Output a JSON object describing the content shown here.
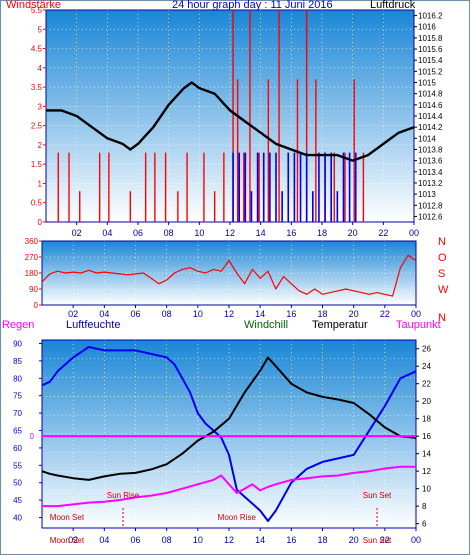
{
  "colors": {
    "plot_top": "#1a86d6",
    "plot_bottom": "#ffffff",
    "wind": "#ff0000",
    "gust": "#0000ee",
    "pressure": "#000000",
    "dir": "#ff0000",
    "temp": "#000000",
    "hum": "#0000ee",
    "dew": "#ff00ff",
    "rain": "#ff00ff",
    "grid": "#ffffff",
    "axis_blue": "#0000aa",
    "sun": "#cc0000",
    "moon": "#cc0000"
  },
  "header": {
    "title": "24 hour graph day : 11 Juni 2016",
    "left_label": "Windstärke",
    "right_label": "Luftdruck"
  },
  "panel3_labels": {
    "regen": "Regen",
    "luftfeuchte": "Luftfeuchte",
    "windchill": "Windchill",
    "temperatur": "Temperatur",
    "taupunkt": "Taupunkt"
  },
  "chart_data": [
    {
      "type": "line",
      "title": "24 hour graph day : 11 Juni 2016",
      "x_ticks": [
        "02",
        "04",
        "06",
        "08",
        "10",
        "12",
        "14",
        "16",
        "18",
        "20",
        "22",
        "00"
      ],
      "x_range_hours": [
        0,
        24
      ],
      "y_left": {
        "label": "Windstärke",
        "range": [
          0,
          5.5
        ],
        "ticks": [
          "0",
          "0.5",
          "1",
          "1.5",
          "2",
          "2.5",
          "3",
          "3.5",
          "4",
          "4.5",
          "5",
          "5.5"
        ]
      },
      "y_right": {
        "label": "Luftdruck",
        "range": [
          1012.5,
          1016.3
        ],
        "ticks": [
          "1012.6",
          "1012.8",
          "1013",
          "1013.2",
          "1013.4",
          "1013.6",
          "1013.8",
          "1014",
          "1014.2",
          "1014.4",
          "1014.6",
          "1014.8",
          "1015",
          "1015.2",
          "1015.4",
          "1015.6",
          "1015.8",
          "1016",
          "1016.2"
        ]
      },
      "series": [
        {
          "axis": "right",
          "x": [
            0,
            1,
            2,
            3,
            4,
            5,
            5.5,
            6,
            7,
            8,
            9,
            9.5,
            10,
            11,
            12,
            13,
            14,
            15,
            16,
            17,
            18,
            19,
            20,
            21,
            22,
            23,
            24
          ],
          "y": [
            1014.5,
            1014.5,
            1014.4,
            1014.2,
            1014.0,
            1013.9,
            1013.8,
            1013.9,
            1014.2,
            1014.6,
            1014.9,
            1015.0,
            1014.9,
            1014.8,
            1014.5,
            1014.3,
            1014.1,
            1013.9,
            1013.8,
            1013.7,
            1013.7,
            1013.7,
            1013.6,
            1013.7,
            1013.9,
            1014.1,
            1014.2
          ]
        },
        {
          "axis": "left",
          "kind": "wind-bars",
          "x": [
            0.8,
            1.5,
            2.2,
            3.5,
            4.1,
            5.5,
            6.5,
            7.1,
            7.8,
            8.6,
            9.2,
            10.3,
            11.0,
            11.6,
            12.2,
            12.5,
            12.9,
            13.3,
            13.9,
            14.5,
            15.2,
            15.8,
            16.4,
            17.0,
            17.6,
            18.2,
            18.8,
            19.5,
            20.1,
            20.7
          ],
          "y": [
            1.8,
            1.8,
            0.8,
            1.8,
            1.8,
            0.8,
            1.8,
            1.8,
            1.8,
            0.8,
            1.8,
            1.8,
            0.8,
            1.8,
            5.5,
            3.7,
            1.8,
            5.5,
            1.8,
            3.7,
            5.5,
            1.8,
            3.7,
            5.5,
            3.7,
            1.8,
            1.8,
            1.8,
            3.7,
            1.8
          ]
        },
        {
          "axis": "left",
          "kind": "gust-bars",
          "x": [
            12.2,
            12.6,
            13.0,
            13.4,
            13.8,
            14.2,
            14.6,
            15.0,
            15.4,
            15.8,
            16.2,
            16.6,
            17.0,
            17.4,
            17.8,
            18.2,
            18.6,
            19.0,
            19.4,
            19.8,
            20.2
          ],
          "y": [
            1.8,
            1.8,
            1.8,
            0.8,
            1.8,
            1.8,
            1.8,
            1.8,
            0.8,
            1.8,
            1.8,
            1.8,
            1.8,
            0.8,
            1.8,
            1.8,
            1.8,
            0.8,
            1.8,
            1.8,
            1.8
          ]
        }
      ]
    },
    {
      "type": "line",
      "x_ticks": [
        "02",
        "04",
        "06",
        "08",
        "10",
        "12",
        "14",
        "16",
        "18",
        "20",
        "22",
        "00"
      ],
      "x_range_hours": [
        0,
        24
      ],
      "y_left": {
        "range": [
          0,
          360
        ],
        "ticks": [
          "0",
          "90",
          "180",
          "270",
          "360"
        ]
      },
      "y_right": {
        "ticks": [
          "N",
          "W",
          "S",
          "O",
          "N"
        ]
      },
      "series": [
        {
          "x": [
            0,
            0.5,
            1,
            1.5,
            2,
            2.5,
            3,
            3.5,
            4,
            4.5,
            5,
            5.5,
            6,
            6.5,
            7,
            7.5,
            8,
            8.5,
            9,
            9.5,
            10,
            10.5,
            11,
            11.5,
            12,
            12.5,
            13,
            13.5,
            14,
            14.5,
            15,
            15.5,
            16,
            16.5,
            17,
            17.5,
            18,
            18.5,
            19,
            19.5,
            20,
            20.5,
            21,
            21.5,
            22,
            22.5,
            23,
            23.5,
            24
          ],
          "y": [
            130,
            175,
            190,
            180,
            185,
            180,
            195,
            180,
            185,
            180,
            175,
            170,
            175,
            180,
            150,
            120,
            140,
            180,
            200,
            210,
            190,
            180,
            200,
            190,
            250,
            180,
            120,
            200,
            150,
            190,
            90,
            160,
            120,
            80,
            60,
            90,
            60,
            70,
            80,
            90,
            80,
            70,
            60,
            70,
            60,
            50,
            210,
            280,
            250
          ]
        }
      ]
    },
    {
      "type": "line",
      "x_ticks": [
        "02",
        "04",
        "06",
        "08",
        "10",
        "12",
        "14",
        "16",
        "18",
        "20",
        "22",
        "00"
      ],
      "x_range_hours": [
        0,
        24
      ],
      "y_left": {
        "label": "Luftfeuchte",
        "range": [
          37,
          91
        ],
        "ticks": [
          "40",
          "45",
          "50",
          "55",
          "60",
          "65",
          "70",
          "75",
          "80",
          "85",
          "90"
        ]
      },
      "y_right": {
        "label": "Temperatur",
        "range": [
          5.5,
          27
        ],
        "ticks": [
          "6",
          "8",
          "10",
          "12",
          "14",
          "16",
          "18",
          "20",
          "22",
          "24",
          "26"
        ]
      },
      "y_rain": {
        "label": "Regen",
        "ticks": [
          "0"
        ]
      },
      "series": [
        {
          "name": "Luftfeuchte",
          "axis": "left",
          "x": [
            0,
            0.5,
            1,
            2,
            3,
            4,
            5,
            6,
            7,
            8,
            8.5,
            9,
            9.5,
            10,
            10.5,
            11,
            11.5,
            12,
            12.5,
            13,
            13.5,
            14,
            14.5,
            15,
            16,
            17,
            18,
            19,
            20,
            21,
            22,
            23,
            24
          ],
          "y": [
            78,
            79,
            82,
            86,
            89,
            88,
            88,
            88,
            87,
            86,
            84,
            80,
            76,
            70,
            67,
            65,
            63,
            58,
            48,
            46,
            44,
            42,
            39,
            42,
            50,
            54,
            56,
            57,
            58,
            65,
            72,
            80,
            82
          ]
        },
        {
          "name": "Temperatur",
          "axis": "right",
          "x": [
            0,
            0.5,
            1,
            2,
            3,
            4,
            5,
            6,
            7,
            8,
            9,
            10,
            11,
            12,
            13,
            14,
            14.5,
            15,
            16,
            17,
            18,
            19,
            20,
            21,
            22,
            23,
            24
          ],
          "y": [
            12.0,
            11.7,
            11.5,
            11.2,
            11.0,
            11.4,
            11.7,
            11.8,
            12.2,
            12.8,
            14.0,
            15.5,
            16.5,
            18.0,
            21.0,
            23.5,
            25.0,
            24.0,
            22.0,
            21.0,
            20.5,
            20.2,
            19.8,
            18.5,
            17.0,
            16.0,
            15.8
          ]
        },
        {
          "name": "Taupunkt",
          "axis": "right",
          "x": [
            0,
            1,
            2,
            3,
            4,
            5,
            6,
            7,
            8,
            9,
            10,
            11,
            11.5,
            12,
            12.5,
            13,
            13.5,
            14,
            14.5,
            15,
            16,
            17,
            18,
            19,
            20,
            21,
            22,
            23,
            24
          ],
          "y": [
            8.0,
            8.0,
            8.2,
            8.4,
            8.5,
            8.7,
            9.0,
            9.2,
            9.5,
            10.0,
            10.5,
            11.0,
            11.5,
            10.5,
            9.5,
            10.0,
            10.5,
            9.8,
            10.2,
            10.5,
            11.0,
            11.2,
            11.4,
            11.5,
            11.8,
            12.0,
            12.3,
            12.5,
            12.5
          ]
        },
        {
          "name": "Regen",
          "axis": "rain",
          "x": [
            0,
            24
          ],
          "y": [
            0,
            0
          ]
        }
      ],
      "annotations": [
        {
          "text": "Sun Rise",
          "x": 5.2
        },
        {
          "text": "Sun Set",
          "x": 21.5
        },
        {
          "text": "Moon Set",
          "x": 1.6
        },
        {
          "text": "Moon Rise",
          "x": 12.5
        },
        {
          "text": "Moon Set",
          "x": 1.6
        },
        {
          "text": "Sun Set",
          "x": 21.5
        }
      ]
    }
  ]
}
